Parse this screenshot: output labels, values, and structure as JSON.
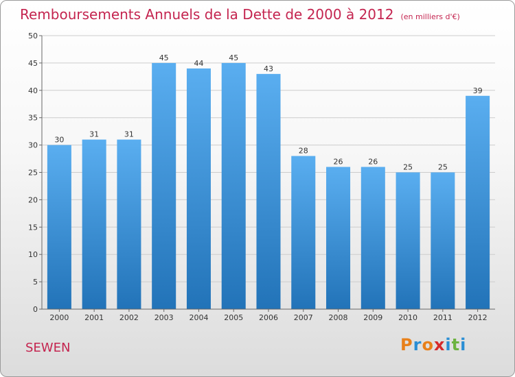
{
  "title": "Remboursements Annuels de la Dette de 2000 à 2012",
  "unit": "(en milliers d'€)",
  "commune": "SEWEN",
  "logo": {
    "letters": [
      "P",
      "r",
      "o",
      "x",
      "i",
      "t",
      "i"
    ],
    "colors": [
      "#e8801a",
      "#2a8ed4",
      "#e8801a",
      "#d62a2a",
      "#2a8ed4",
      "#6cb33f",
      "#2a8ed4"
    ]
  },
  "chart_data": {
    "type": "bar",
    "title": "Remboursements Annuels de la Dette de 2000 à 2012",
    "categories": [
      "2000",
      "2001",
      "2002",
      "2003",
      "2004",
      "2005",
      "2006",
      "2007",
      "2008",
      "2009",
      "2010",
      "2011",
      "2012"
    ],
    "values": [
      30,
      31,
      31,
      45,
      44,
      45,
      43,
      28,
      26,
      26,
      25,
      25,
      39
    ],
    "ylim": [
      0,
      50
    ],
    "yticks": [
      0,
      5,
      10,
      15,
      20,
      25,
      30,
      35,
      40,
      45,
      50
    ],
    "grid": true,
    "bar_color": "#3d8fd8"
  }
}
